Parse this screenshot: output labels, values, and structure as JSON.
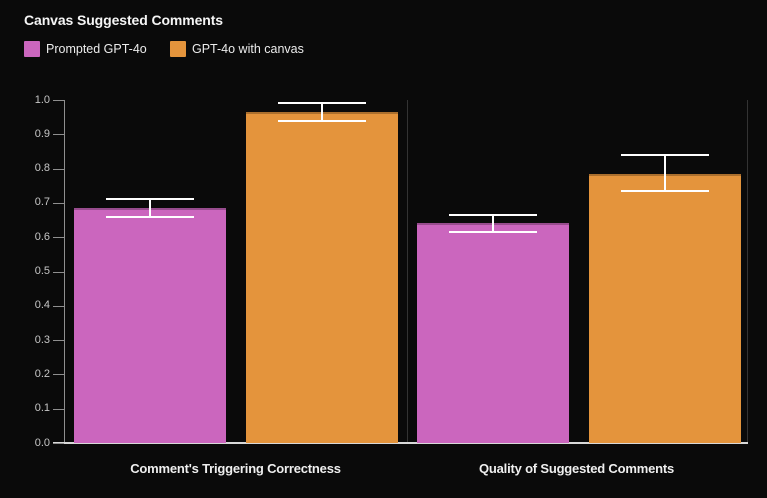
{
  "title": "Canvas Suggested Comments",
  "legend": [
    {
      "label": "Prompted GPT-4o",
      "color": "#cb66be"
    },
    {
      "label": "GPT-4o with canvas",
      "color": "#e4943c"
    }
  ],
  "colors": {
    "background": "#0a0a0a",
    "bar_magenta": "#cb66be",
    "bar_orange": "#e4943c",
    "error_bar": "#ffffff",
    "axis": "#8f8f8f",
    "baseline": "#d9d9d9",
    "gridline": "#333333",
    "tick_text": "#c6c6c6",
    "label_text": "#efefef"
  },
  "chart_data": {
    "type": "bar",
    "title": "Canvas Suggested Comments",
    "categories": [
      "Comment's Triggering Correctness",
      "Quality of Suggested Comments"
    ],
    "series": [
      {
        "name": "Prompted GPT-4o",
        "color": "#cb66be",
        "values": [
          0.685,
          0.64
        ],
        "error_low": [
          0.66,
          0.615
        ],
        "error_high": [
          0.71,
          0.665
        ]
      },
      {
        "name": "GPT-4o with canvas",
        "color": "#e4943c",
        "values": [
          0.965,
          0.785
        ],
        "error_low": [
          0.94,
          0.735
        ],
        "error_high": [
          0.99,
          0.84
        ]
      }
    ],
    "xlabel": "",
    "ylabel": "",
    "ylim": [
      0.0,
      1.0
    ],
    "ytick_step": 0.1,
    "ytick_labels": [
      "0.0",
      "0.1",
      "0.2",
      "0.3",
      "0.4",
      "0.5",
      "0.6",
      "0.7",
      "0.8",
      "0.9",
      "1.0"
    ],
    "grid": "vertical category separators only",
    "legend_position": "top-left",
    "error_bars": true
  }
}
